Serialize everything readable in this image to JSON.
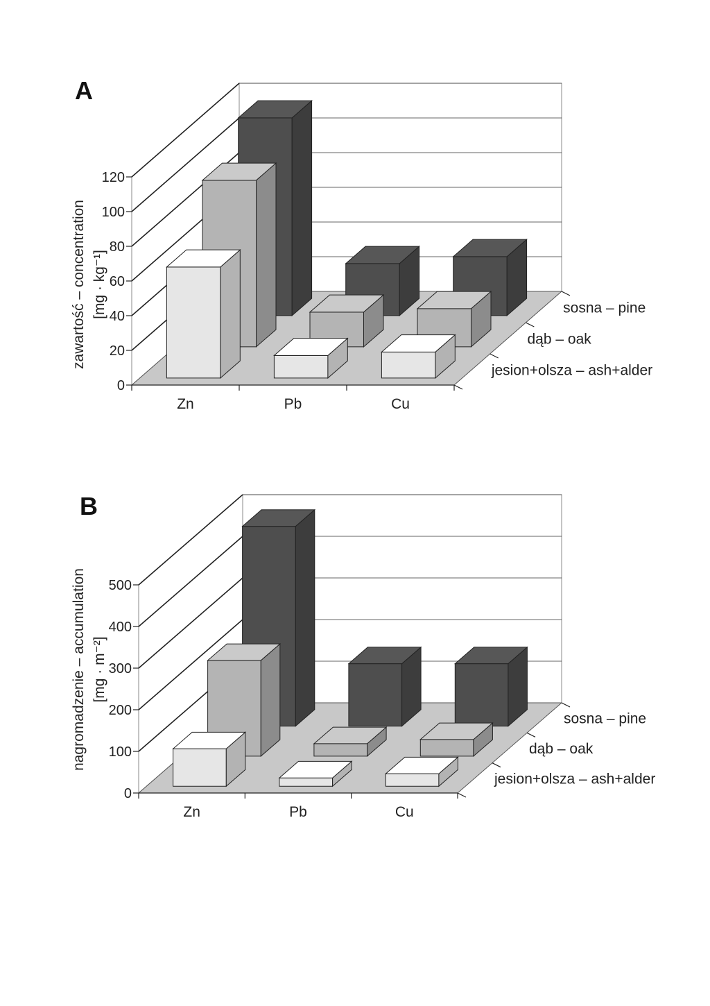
{
  "chart_data": [
    {
      "type": "bar",
      "panel": "A",
      "ylabel": "zawartość – concentration",
      "yunit": "[mg · kg⁻¹]",
      "ylim": [
        0,
        120
      ],
      "yticks": [
        0,
        20,
        40,
        60,
        80,
        100,
        120
      ],
      "categories": [
        "Zn",
        "Pb",
        "Cu"
      ],
      "series": [
        {
          "name": "jesion+olsza – ash+alder",
          "values": [
            64,
            13,
            15
          ]
        },
        {
          "name": "dąb – oak",
          "values": [
            96,
            20,
            22
          ]
        },
        {
          "name": "sosna – pine",
          "values": [
            114,
            30,
            34
          ]
        }
      ],
      "colors": [
        "#e6e6e6",
        "#b4b4b4",
        "#4e4e4e"
      ],
      "grid": true
    },
    {
      "type": "bar",
      "panel": "B",
      "ylabel": "nagromadzenie – accumulation",
      "yunit": "[mg · m⁻²]",
      "ylim": [
        0,
        500
      ],
      "yticks": [
        0,
        100,
        200,
        300,
        400,
        500
      ],
      "categories": [
        "Zn",
        "Pb",
        "Cu"
      ],
      "series": [
        {
          "name": "jesion+olsza – ash+alder",
          "values": [
            90,
            20,
            30
          ]
        },
        {
          "name": "dąb – oak",
          "values": [
            230,
            30,
            40
          ]
        },
        {
          "name": "sosna – pine",
          "values": [
            480,
            150,
            150
          ]
        }
      ],
      "colors": [
        "#e6e6e6",
        "#b4b4b4",
        "#4e4e4e"
      ],
      "grid": true
    }
  ],
  "depth_labels": [
    "sosna – pine",
    "dąb – oak",
    "jesion+olsza – ash+alder"
  ]
}
